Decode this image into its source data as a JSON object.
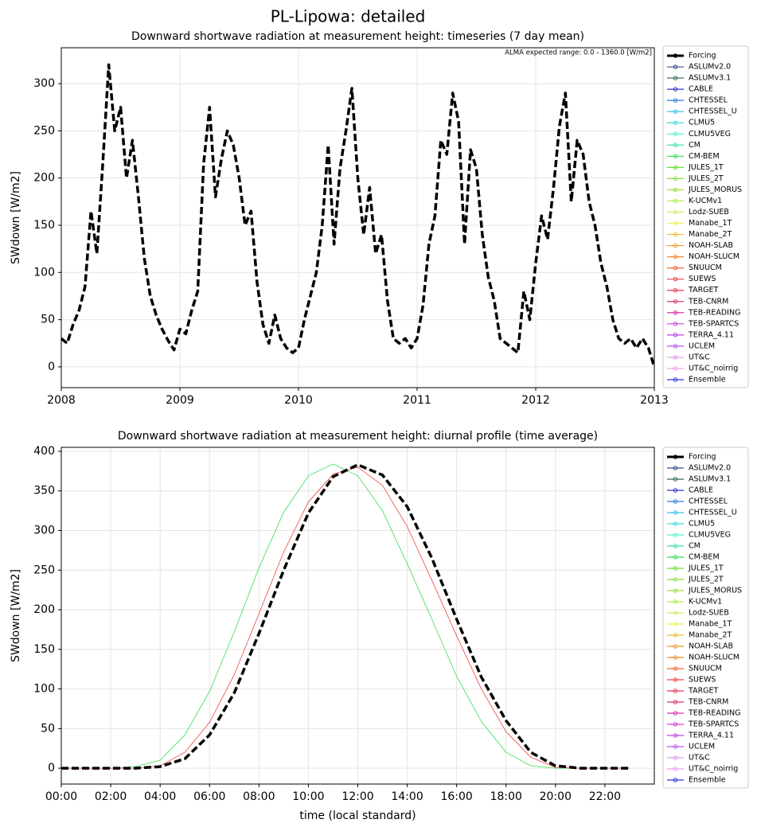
{
  "title": "PL-Lipowa: detailed",
  "chart_data": [
    {
      "type": "line",
      "title": "Downward shortwave radiation at measurement height: timeseries (7 day mean)",
      "ylabel": "SWdown [W/m2]",
      "annotation": "ALMA expected range: 0.0 - 1360.0 [W/m2]",
      "xlim": [
        2008,
        2013
      ],
      "xticks": [
        2008,
        2009,
        2010,
        2011,
        2012,
        2013
      ],
      "ylim": [
        -22,
        338
      ],
      "yticks": [
        0,
        50,
        100,
        150,
        200,
        250,
        300
      ],
      "grid": true,
      "x": [
        2008.0,
        2008.05,
        2008.1,
        2008.15,
        2008.2,
        2008.25,
        2008.3,
        2008.35,
        2008.4,
        2008.45,
        2008.5,
        2008.55,
        2008.6,
        2008.65,
        2008.7,
        2008.75,
        2008.8,
        2008.85,
        2008.9,
        2008.95,
        2009.0,
        2009.05,
        2009.1,
        2009.15,
        2009.2,
        2009.25,
        2009.3,
        2009.35,
        2009.4,
        2009.45,
        2009.5,
        2009.55,
        2009.6,
        2009.65,
        2009.7,
        2009.75,
        2009.8,
        2009.85,
        2009.9,
        2009.95,
        2010.0,
        2010.05,
        2010.1,
        2010.15,
        2010.2,
        2010.25,
        2010.3,
        2010.35,
        2010.4,
        2010.45,
        2010.5,
        2010.55,
        2010.6,
        2010.65,
        2010.7,
        2010.75,
        2010.8,
        2010.85,
        2010.9,
        2010.95,
        2011.0,
        2011.05,
        2011.1,
        2011.15,
        2011.2,
        2011.25,
        2011.3,
        2011.35,
        2011.4,
        2011.45,
        2011.5,
        2011.55,
        2011.6,
        2011.65,
        2011.7,
        2011.75,
        2011.8,
        2011.85,
        2011.9,
        2011.95,
        2012.0,
        2012.05,
        2012.1,
        2012.15,
        2012.2,
        2012.25,
        2012.3,
        2012.35,
        2012.4,
        2012.45,
        2012.5,
        2012.55,
        2012.6,
        2012.65,
        2012.7,
        2012.75,
        2012.8,
        2012.85,
        2012.9,
        2012.95,
        2013.0
      ],
      "series": [
        {
          "name": "Forcing",
          "color": "#000000",
          "linestyle": "dashed",
          "linewidth": 3.5,
          "values": [
            30,
            25,
            45,
            60,
            85,
            165,
            120,
            215,
            320,
            250,
            275,
            200,
            240,
            180,
            115,
            75,
            55,
            40,
            28,
            18,
            40,
            35,
            60,
            80,
            215,
            275,
            180,
            220,
            250,
            235,
            200,
            150,
            165,
            90,
            45,
            25,
            55,
            30,
            20,
            15,
            20,
            50,
            75,
            100,
            150,
            235,
            130,
            210,
            250,
            295,
            200,
            140,
            190,
            120,
            140,
            70,
            30,
            25,
            30,
            20,
            30,
            65,
            130,
            160,
            240,
            225,
            290,
            260,
            130,
            230,
            210,
            140,
            95,
            70,
            30,
            25,
            20,
            15,
            80,
            50,
            110,
            160,
            135,
            190,
            255,
            290,
            175,
            240,
            225,
            175,
            150,
            110,
            85,
            50,
            30,
            25,
            30,
            20,
            30,
            20,
            0
          ]
        }
      ],
      "legend": [
        {
          "name": "Forcing",
          "color": "#000000"
        },
        {
          "name": "ASLUMv2.0",
          "color": "#3a4a8a"
        },
        {
          "name": "ASLUMv3.1",
          "color": "#2e6b4f"
        },
        {
          "name": "CABLE",
          "color": "#3333cc"
        },
        {
          "name": "CHTESSEL",
          "color": "#3377dd"
        },
        {
          "name": "CHTESSEL_U",
          "color": "#33bbee"
        },
        {
          "name": "CLMU5",
          "color": "#33dddd"
        },
        {
          "name": "CLMU5VEG",
          "color": "#55eecc"
        },
        {
          "name": "CM",
          "color": "#44ddaa"
        },
        {
          "name": "CM-BEM",
          "color": "#33dd55"
        },
        {
          "name": "JULES_1T",
          "color": "#66dd33"
        },
        {
          "name": "JULES_2T",
          "color": "#88dd44"
        },
        {
          "name": "JULES_MORUS",
          "color": "#99dd33"
        },
        {
          "name": "K-UCMv1",
          "color": "#aaee44"
        },
        {
          "name": "Lodz-SUEB",
          "color": "#ccee66"
        },
        {
          "name": "Manabe_1T",
          "color": "#eeee55"
        },
        {
          "name": "Manabe_2T",
          "color": "#eebb33"
        },
        {
          "name": "NOAH-SLAB",
          "color": "#ee9922"
        },
        {
          "name": "NOAH-SLUCM",
          "color": "#ee8833"
        },
        {
          "name": "SNUUCM",
          "color": "#ee6633"
        },
        {
          "name": "SUEWS",
          "color": "#ee4444"
        },
        {
          "name": "TARGET",
          "color": "#ee3355"
        },
        {
          "name": "TEB-CNRM",
          "color": "#dd3377"
        },
        {
          "name": "TEB-READING",
          "color": "#dd33aa"
        },
        {
          "name": "TEB-SPARTCS",
          "color": "#cc44cc"
        },
        {
          "name": "TERRA_4.11",
          "color": "#bb44dd"
        },
        {
          "name": "UCLEM",
          "color": "#bb55ee"
        },
        {
          "name": "UT&C",
          "color": "#dd99ee"
        },
        {
          "name": "UT&C_noirrig",
          "color": "#ee99ee"
        },
        {
          "name": "Ensemble",
          "color": "#3333ee"
        }
      ]
    },
    {
      "type": "line",
      "title": "Downward shortwave radiation at measurement height: diurnal profile (time average)",
      "ylabel": "SWdown [W/m2]",
      "xlabel": "time (local standard)",
      "xlim": [
        0,
        24
      ],
      "xticks": [
        {
          "value": 0,
          "label": "00:00"
        },
        {
          "value": 2,
          "label": "02:00"
        },
        {
          "value": 4,
          "label": "04:00"
        },
        {
          "value": 6,
          "label": "06:00"
        },
        {
          "value": 8,
          "label": "08:00"
        },
        {
          "value": 10,
          "label": "10:00"
        },
        {
          "value": 12,
          "label": "12:00"
        },
        {
          "value": 14,
          "label": "14:00"
        },
        {
          "value": 16,
          "label": "16:00"
        },
        {
          "value": 18,
          "label": "18:00"
        },
        {
          "value": 20,
          "label": "20:00"
        },
        {
          "value": 22,
          "label": "22:00"
        }
      ],
      "ylim": [
        -20,
        405
      ],
      "yticks": [
        0,
        50,
        100,
        150,
        200,
        250,
        300,
        350,
        400
      ],
      "grid": true,
      "x": [
        0,
        1,
        2,
        3,
        4,
        5,
        6,
        7,
        8,
        9,
        10,
        11,
        12,
        13,
        14,
        15,
        16,
        17,
        18,
        19,
        20,
        21,
        22,
        23
      ],
      "series": [
        {
          "name": "CM-BEM",
          "color": "#33dd55",
          "linestyle": "solid",
          "linewidth": 0.8,
          "values": [
            0,
            0,
            0,
            2,
            10,
            42,
            97,
            172,
            253,
            323,
            369,
            384,
            369,
            325,
            258,
            188,
            116,
            59,
            20,
            3,
            0,
            0,
            0,
            0
          ]
        },
        {
          "name": "SUEWS",
          "color": "#ee4444",
          "linestyle": "solid",
          "linewidth": 0.8,
          "values": [
            0,
            0,
            0,
            0,
            3,
            20,
            58,
            118,
            195,
            273,
            336,
            371,
            380,
            357,
            305,
            237,
            167,
            100,
            46,
            14,
            1,
            0,
            0,
            0
          ]
        },
        {
          "name": "Forcing",
          "color": "#000000",
          "linestyle": "dashed",
          "linewidth": 3.5,
          "values": [
            0,
            0,
            0,
            0,
            2,
            12,
            42,
            95,
            170,
            250,
            322,
            368,
            383,
            370,
            330,
            265,
            188,
            115,
            60,
            20,
            3,
            0,
            0,
            0
          ]
        }
      ],
      "legend": [
        {
          "name": "Forcing",
          "color": "#000000"
        },
        {
          "name": "ASLUMv2.0",
          "color": "#3a4a8a"
        },
        {
          "name": "ASLUMv3.1",
          "color": "#2e6b4f"
        },
        {
          "name": "CABLE",
          "color": "#3333cc"
        },
        {
          "name": "CHTESSEL",
          "color": "#3377dd"
        },
        {
          "name": "CHTESSEL_U",
          "color": "#33bbee"
        },
        {
          "name": "CLMU5",
          "color": "#33dddd"
        },
        {
          "name": "CLMU5VEG",
          "color": "#55eecc"
        },
        {
          "name": "CM",
          "color": "#44ddaa"
        },
        {
          "name": "CM-BEM",
          "color": "#33dd55"
        },
        {
          "name": "JULES_1T",
          "color": "#66dd33"
        },
        {
          "name": "JULES_2T",
          "color": "#88dd44"
        },
        {
          "name": "JULES_MORUS",
          "color": "#99dd33"
        },
        {
          "name": "K-UCMv1",
          "color": "#aaee44"
        },
        {
          "name": "Lodz-SUEB",
          "color": "#ccee66"
        },
        {
          "name": "Manabe_1T",
          "color": "#eeee55"
        },
        {
          "name": "Manabe_2T",
          "color": "#eebb33"
        },
        {
          "name": "NOAH-SLAB",
          "color": "#ee9922"
        },
        {
          "name": "NOAH-SLUCM",
          "color": "#ee8833"
        },
        {
          "name": "SNUUCM",
          "color": "#ee6633"
        },
        {
          "name": "SUEWS",
          "color": "#ee4444"
        },
        {
          "name": "TARGET",
          "color": "#ee3355"
        },
        {
          "name": "TEB-CNRM",
          "color": "#dd3377"
        },
        {
          "name": "TEB-READING",
          "color": "#dd33aa"
        },
        {
          "name": "TEB-SPARTCS",
          "color": "#cc44cc"
        },
        {
          "name": "TERRA_4.11",
          "color": "#bb44dd"
        },
        {
          "name": "UCLEM",
          "color": "#bb55ee"
        },
        {
          "name": "UT&C",
          "color": "#dd99ee"
        },
        {
          "name": "UT&C_noirrig",
          "color": "#ee99ee"
        },
        {
          "name": "Ensemble",
          "color": "#3333ee"
        }
      ]
    }
  ]
}
